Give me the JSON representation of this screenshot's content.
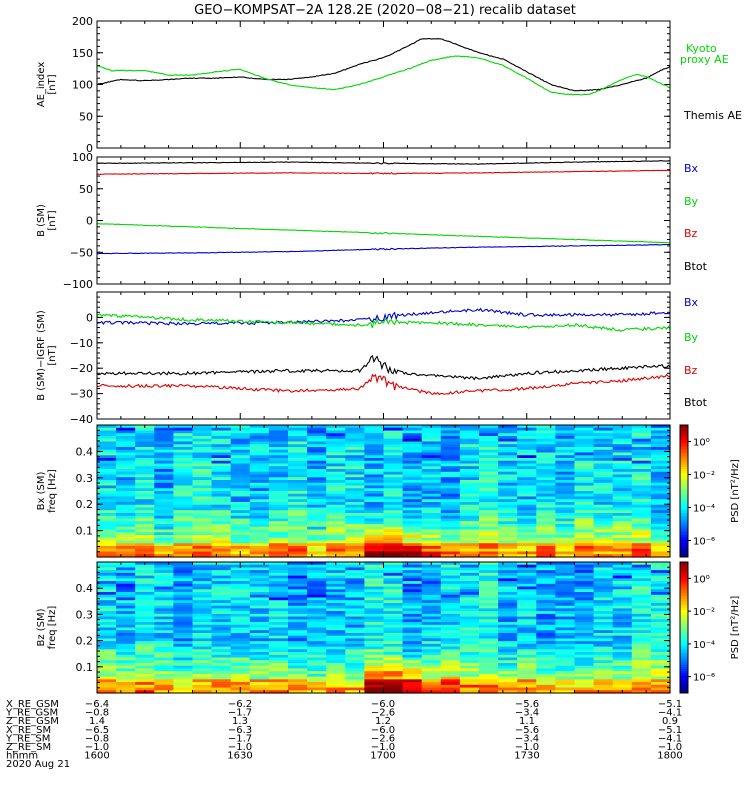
{
  "title": "GEO−KOMPSAT−2A 128.2E (2020−08−21) recalib dataset",
  "colors": {
    "black": "#000000",
    "green": "#00d800",
    "red": "#e00000",
    "blue": "#0000c8"
  },
  "chart_data": [
    {
      "type": "line",
      "panel": "ae",
      "ylabel": [
        "AE_index",
        "[nT]"
      ],
      "ylim": [
        0,
        200
      ],
      "yticks": [
        0,
        50,
        100,
        150,
        200
      ],
      "xlim": [
        0,
        120
      ],
      "legend": [
        {
          "text": "Kyoto",
          "color": "green"
        },
        {
          "text": "proxy AE",
          "color": "green"
        },
        {
          "text": "Themis AE",
          "color": "black"
        }
      ],
      "series": [
        {
          "name": "Themis AE",
          "color": "black",
          "x": [
            0,
            5,
            10,
            15,
            20,
            25,
            30,
            35,
            40,
            45,
            50,
            55,
            60,
            65,
            68,
            72,
            75,
            80,
            85,
            90,
            95,
            100,
            105,
            110,
            115,
            118,
            120
          ],
          "y": [
            100,
            108,
            106,
            108,
            110,
            110,
            112,
            108,
            108,
            112,
            118,
            132,
            142,
            160,
            172,
            172,
            164,
            150,
            140,
            120,
            100,
            90,
            92,
            100,
            110,
            122,
            128
          ]
        },
        {
          "name": "Kyoto proxy AE",
          "color": "green",
          "x": [
            0,
            3,
            5,
            10,
            15,
            20,
            25,
            30,
            35,
            40,
            45,
            50,
            55,
            60,
            65,
            70,
            75,
            80,
            85,
            90,
            95,
            98,
            100,
            103,
            105,
            110,
            113,
            115,
            118,
            120
          ],
          "y": [
            130,
            122,
            122,
            122,
            115,
            115,
            120,
            124,
            110,
            100,
            95,
            92,
            100,
            112,
            124,
            138,
            145,
            142,
            130,
            110,
            88,
            85,
            84,
            84,
            90,
            108,
            116,
            112,
            102,
            95
          ]
        }
      ]
    },
    {
      "type": "line",
      "panel": "bsm",
      "ylabel": [
        "B (SM)",
        "[nT]"
      ],
      "ylim": [
        -100,
        100
      ],
      "yticks": [
        -100,
        -50,
        0,
        50,
        100
      ],
      "xlim": [
        0,
        120
      ],
      "legend": [
        {
          "text": "Bx",
          "color": "blue"
        },
        {
          "text": "By",
          "color": "green"
        },
        {
          "text": "Bz",
          "color": "red"
        },
        {
          "text": "Btot",
          "color": "black"
        }
      ],
      "series": [
        {
          "name": "Btot",
          "color": "black",
          "x": [
            0,
            20,
            40,
            60,
            80,
            100,
            120
          ],
          "y": [
            90,
            91,
            92,
            90,
            89,
            92,
            94
          ]
        },
        {
          "name": "Bz",
          "color": "red",
          "x": [
            0,
            20,
            40,
            60,
            80,
            100,
            120
          ],
          "y": [
            73,
            74,
            75,
            74,
            75,
            77,
            79
          ]
        },
        {
          "name": "By",
          "color": "green",
          "x": [
            0,
            20,
            40,
            60,
            80,
            100,
            120
          ],
          "y": [
            -5,
            -10,
            -15,
            -20,
            -25,
            -30,
            -35
          ]
        },
        {
          "name": "Bx",
          "color": "blue",
          "x": [
            0,
            20,
            40,
            60,
            80,
            100,
            120
          ],
          "y": [
            -52,
            -51,
            -49,
            -45,
            -42,
            -40,
            -38
          ]
        }
      ]
    },
    {
      "type": "line",
      "panel": "bigrf",
      "ylabel": [
        "B (SM)−IGRF (SM)",
        "[nT]"
      ],
      "ylim": [
        -40,
        10
      ],
      "yticks": [
        -40,
        -30,
        -20,
        -10,
        0
      ],
      "xlim": [
        0,
        120
      ],
      "legend": [
        {
          "text": "Bx",
          "color": "blue"
        },
        {
          "text": "By",
          "color": "green"
        },
        {
          "text": "Bz",
          "color": "red"
        },
        {
          "text": "Btot",
          "color": "black"
        }
      ],
      "series": [
        {
          "name": "Bx",
          "color": "blue",
          "x": [
            0,
            20,
            40,
            55,
            60,
            70,
            80,
            90,
            100,
            110,
            120
          ],
          "y": [
            -2,
            -2.5,
            -2,
            -1,
            0,
            2,
            3,
            1,
            1,
            1,
            2
          ]
        },
        {
          "name": "By",
          "color": "green",
          "x": [
            0,
            20,
            40,
            55,
            60,
            70,
            80,
            90,
            100,
            110,
            120
          ],
          "y": [
            1,
            -1,
            -2,
            -3,
            -2,
            -2,
            -3,
            -4,
            -3,
            -5,
            -4
          ]
        },
        {
          "name": "Btot",
          "color": "black",
          "x": [
            0,
            20,
            40,
            55,
            58,
            60,
            62,
            65,
            70,
            80,
            90,
            100,
            110,
            120
          ],
          "y": [
            -22,
            -22,
            -21,
            -21,
            -16,
            -19,
            -21,
            -22,
            -23,
            -24,
            -22,
            -21,
            -20,
            -19
          ]
        },
        {
          "name": "Bz",
          "color": "red",
          "x": [
            0,
            20,
            40,
            55,
            58,
            60,
            62,
            65,
            70,
            80,
            90,
            100,
            110,
            120
          ],
          "y": [
            -27,
            -27,
            -29,
            -28,
            -23,
            -25,
            -27,
            -28,
            -30,
            -29,
            -28,
            -26,
            -25,
            -23
          ]
        }
      ]
    },
    {
      "type": "heatmap",
      "panel": "bx_spec",
      "ylabel": [
        "Bx (SM)",
        "freq [Hz]"
      ],
      "ylim": [
        0,
        0.5
      ],
      "yticks": [
        0.1,
        0.2,
        0.3,
        0.4
      ],
      "xlim": [
        0,
        120
      ],
      "colorbar": {
        "label": "PSD [nT²/Hz]",
        "ticks": [
          "10⁰",
          "10⁻²",
          "10⁻⁴",
          "10⁻⁶"
        ],
        "range_log10": [
          -7,
          1
        ]
      }
    },
    {
      "type": "heatmap",
      "panel": "bz_spec",
      "ylabel": [
        "Bz (SM)",
        "freq [Hz]"
      ],
      "ylim": [
        0,
        0.5
      ],
      "yticks": [
        0.1,
        0.2,
        0.3,
        0.4
      ],
      "xlim": [
        0,
        120
      ],
      "colorbar": {
        "label": "PSD [nT²/Hz]",
        "ticks": [
          "10⁰",
          "10⁻²",
          "10⁻⁴",
          "10⁻⁶"
        ],
        "range_log10": [
          -7,
          1
        ]
      }
    }
  ],
  "ephemeris": {
    "rows": [
      {
        "label": "X_RE_GSM",
        "values": [
          "−6.4",
          "−6.2",
          "−6.0",
          "−5.6",
          "−5.1"
        ]
      },
      {
        "label": "Y_RE_GSM",
        "values": [
          "−0.8",
          "−1.7",
          "−2.6",
          "−3.4",
          "−4.1"
        ]
      },
      {
        "label": "Z_RE_GSM",
        "values": [
          "1.4",
          "1.3",
          "1.2",
          "1.1",
          "0.9"
        ]
      },
      {
        "label": "X_RE_SM",
        "values": [
          "−6.5",
          "−6.3",
          "−6.0",
          "−5.6",
          "−5.1"
        ]
      },
      {
        "label": "Y_RE_SM",
        "values": [
          "−0.8",
          "−1.7",
          "−2.6",
          "−3.4",
          "−4.1"
        ]
      },
      {
        "label": "Z_RE_SM",
        "values": [
          "−1.0",
          "−1.0",
          "−1.0",
          "−1.0",
          "−1.0"
        ]
      },
      {
        "label": "hhmm",
        "values": [
          "1600",
          "1630",
          "1700",
          "1730",
          "1800"
        ]
      }
    ],
    "date": "2020 Aug 21"
  }
}
